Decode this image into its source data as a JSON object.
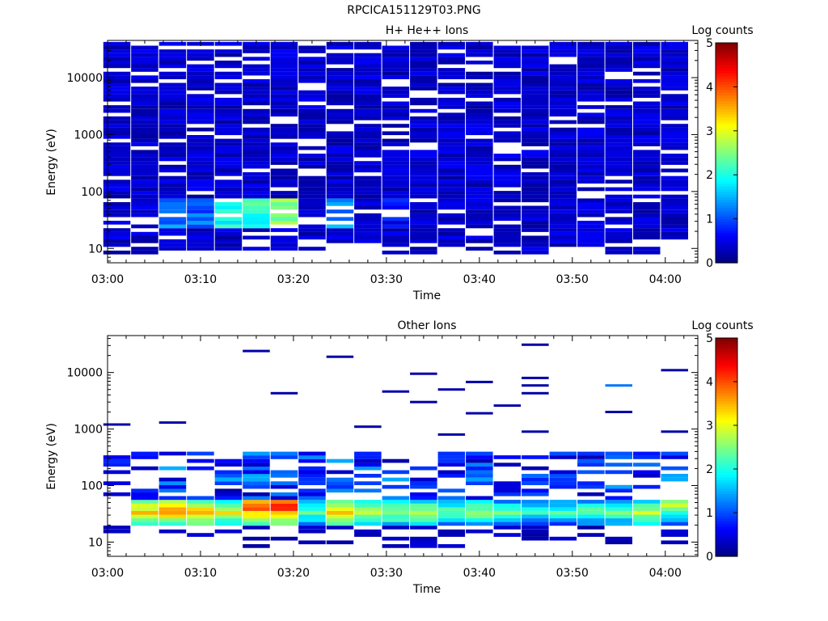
{
  "page": {
    "title": "RPCICA151129T03.PNG"
  },
  "chart_data": [
    {
      "type": "heatmap",
      "title": "H+ He++ Ions",
      "xlabel": "Time",
      "ylabel": "Energy (eV)",
      "y_scale": "log",
      "ylim": [
        5.6,
        45000
      ],
      "x_ticks": [
        "03:00",
        "03:10",
        "03:20",
        "03:30",
        "03:40",
        "03:50",
        "04:00"
      ],
      "y_ticks": [
        "10",
        "100",
        "1000",
        "10000"
      ],
      "colorbar": {
        "label": "Log counts",
        "ticks": [
          "0",
          "1",
          "2",
          "3",
          "4",
          "5"
        ],
        "range": [
          0,
          5
        ]
      },
      "time_bins": [
        "03:01",
        "03:04",
        "03:07",
        "03:10",
        "03:13",
        "03:16",
        "03:19",
        "03:22",
        "03:25",
        "03:28",
        "03:31",
        "03:34",
        "03:37",
        "03:40",
        "03:43",
        "03:46",
        "03:49",
        "03:52",
        "03:55",
        "03:58",
        "04:01"
      ],
      "energy_bins_ev": [
        8.5,
        9.9,
        11.5,
        13.4,
        15.5,
        18.1,
        21,
        24.4,
        28.4,
        33,
        38.4,
        44.6,
        51.9,
        60.3,
        70.1,
        81.5,
        94.8,
        110,
        128,
        149,
        173,
        202,
        234,
        273,
        317,
        368,
        428,
        498,
        579,
        673,
        782,
        909,
        1057,
        1228,
        1428,
        1660,
        1930,
        2243,
        2608,
        3032,
        3524,
        4097,
        4763,
        5537,
        6437,
        7483,
        8699,
        10112,
        11755,
        13666,
        15886,
        18468,
        21469,
        24958,
        29014,
        33729,
        39210
      ],
      "peak_log_counts": [
        {
          "time": "03:07",
          "energy_ev": 38,
          "log_counts": 1.6
        },
        {
          "time": "03:10",
          "energy_ev": 38,
          "log_counts": 1.4
        },
        {
          "time": "03:13",
          "energy_ev": 55,
          "log_counts": 2.3
        },
        {
          "time": "03:16",
          "energy_ev": 55,
          "log_counts": 2.4
        },
        {
          "time": "03:19",
          "energy_ev": 55,
          "log_counts": 2.8
        },
        {
          "time": "03:25",
          "energy_ev": 40,
          "log_counts": 1.6
        },
        {
          "time": "03:31",
          "energy_ev": 44,
          "log_counts": 0.9
        }
      ]
    },
    {
      "type": "heatmap",
      "title": "Other Ions",
      "xlabel": "Time",
      "ylabel": "Energy (eV)",
      "y_scale": "log",
      "ylim": [
        5.6,
        45000
      ],
      "x_ticks": [
        "03:00",
        "03:10",
        "03:20",
        "03:30",
        "03:40",
        "03:50",
        "04:00"
      ],
      "y_ticks": [
        "10",
        "100",
        "1000",
        "10000"
      ],
      "colorbar": {
        "label": "Log counts",
        "ticks": [
          "0",
          "1",
          "2",
          "3",
          "4",
          "5"
        ],
        "range": [
          0,
          5
        ]
      },
      "time_bins": [
        "03:01",
        "03:04",
        "03:07",
        "03:10",
        "03:13",
        "03:16",
        "03:19",
        "03:22",
        "03:25",
        "03:28",
        "03:31",
        "03:34",
        "03:37",
        "03:40",
        "03:43",
        "03:46",
        "03:49",
        "03:52",
        "03:55",
        "03:58",
        "04:01"
      ],
      "peak_log_counts": [
        {
          "time": "03:04",
          "energy_ev": 34,
          "log_counts": 3.7
        },
        {
          "time": "03:07",
          "energy_ev": 34,
          "log_counts": 3.9
        },
        {
          "time": "03:10",
          "energy_ev": 34,
          "log_counts": 3.8
        },
        {
          "time": "03:13",
          "energy_ev": 34,
          "log_counts": 3.5
        },
        {
          "time": "03:16",
          "energy_ev": 44,
          "log_counts": 4.4
        },
        {
          "time": "03:19",
          "energy_ev": 44,
          "log_counts": 4.6
        },
        {
          "time": "03:22",
          "energy_ev": 34,
          "log_counts": 2.8
        },
        {
          "time": "03:25",
          "energy_ev": 34,
          "log_counts": 3.9
        },
        {
          "time": "03:28",
          "energy_ev": 34,
          "log_counts": 3.1
        },
        {
          "time": "03:31",
          "energy_ev": 34,
          "log_counts": 3.1
        },
        {
          "time": "03:34",
          "energy_ev": 34,
          "log_counts": 3.2
        },
        {
          "time": "03:37",
          "energy_ev": 34,
          "log_counts": 2.8
        },
        {
          "time": "03:40",
          "energy_ev": 34,
          "log_counts": 3.0
        },
        {
          "time": "03:43",
          "energy_ev": 34,
          "log_counts": 2.8
        },
        {
          "time": "03:46",
          "energy_ev": 34,
          "log_counts": 2.6
        },
        {
          "time": "03:49",
          "energy_ev": 34,
          "log_counts": 2.6
        },
        {
          "time": "03:52",
          "energy_ev": 34,
          "log_counts": 2.7
        },
        {
          "time": "03:55",
          "energy_ev": 34,
          "log_counts": 2.9
        },
        {
          "time": "03:58",
          "energy_ev": 34,
          "log_counts": 3.2
        },
        {
          "time": "04:01",
          "energy_ev": 44,
          "log_counts": 3.2
        }
      ],
      "sparse_high_energy_events": [
        {
          "time": "03:01",
          "energy_ev": 1200,
          "log_counts": 0.2
        },
        {
          "time": "03:07",
          "energy_ev": 1300,
          "log_counts": 0.2
        },
        {
          "time": "03:16",
          "energy_ev": 24000,
          "log_counts": 0.2
        },
        {
          "time": "03:19",
          "energy_ev": 4300,
          "log_counts": 0.2
        },
        {
          "time": "03:25",
          "energy_ev": 19000,
          "log_counts": 0.2
        },
        {
          "time": "03:28",
          "energy_ev": 1100,
          "log_counts": 0.2
        },
        {
          "time": "03:31",
          "energy_ev": 4600,
          "log_counts": 0.2
        },
        {
          "time": "03:34",
          "energy_ev": 9500,
          "log_counts": 0.2
        },
        {
          "time": "03:34",
          "energy_ev": 3000,
          "log_counts": 0.2
        },
        {
          "time": "03:37",
          "energy_ev": 5000,
          "log_counts": 0.2
        },
        {
          "time": "03:37",
          "energy_ev": 800,
          "log_counts": 0.2
        },
        {
          "time": "03:40",
          "energy_ev": 6800,
          "log_counts": 0.2
        },
        {
          "time": "03:40",
          "energy_ev": 1900,
          "log_counts": 0.2
        },
        {
          "time": "03:43",
          "energy_ev": 2600,
          "log_counts": 0.2
        },
        {
          "time": "03:46",
          "energy_ev": 31000,
          "log_counts": 0.2
        },
        {
          "time": "03:46",
          "energy_ev": 8000,
          "log_counts": 0.2
        },
        {
          "time": "03:46",
          "energy_ev": 5900,
          "log_counts": 0.2
        },
        {
          "time": "03:46",
          "energy_ev": 4300,
          "log_counts": 0.2
        },
        {
          "time": "03:46",
          "energy_ev": 900,
          "log_counts": 0.2
        },
        {
          "time": "03:55",
          "energy_ev": 5900,
          "log_counts": 1.2
        },
        {
          "time": "03:55",
          "energy_ev": 2000,
          "log_counts": 0.2
        },
        {
          "time": "04:01",
          "energy_ev": 11000,
          "log_counts": 0.2
        },
        {
          "time": "04:01",
          "energy_ev": 900,
          "log_counts": 0.2
        }
      ]
    }
  ]
}
